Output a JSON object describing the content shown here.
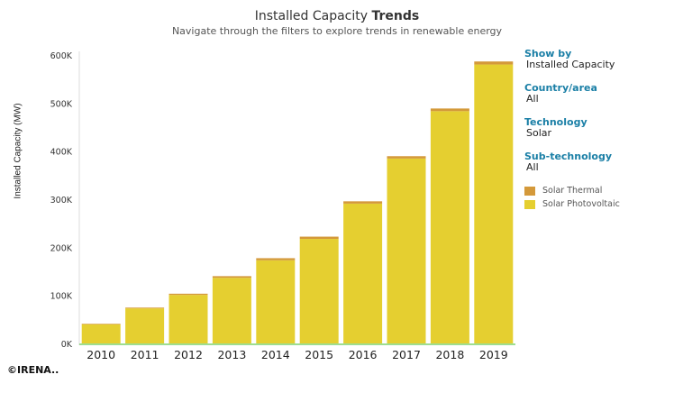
{
  "header": {
    "title_prefix": "Installed Capacity",
    "title_bold": "Trends",
    "subtitle": "Navigate through the filters to explore trends in renewable energy"
  },
  "filters": [
    {
      "label": "Show by",
      "value": "Installed Capacity"
    },
    {
      "label": "Country/area",
      "value": "All"
    },
    {
      "label": "Technology",
      "value": "Solar"
    },
    {
      "label": "Sub-technology",
      "value": "All"
    }
  ],
  "copyright": "©IRENA..",
  "colors": {
    "thermal": "#d4993a",
    "pv": "#e5cf30",
    "baseline": "#7ed36a",
    "filter_label": "#1a7fa6"
  },
  "chart_data": {
    "type": "bar",
    "stacked": true,
    "title": "Installed Capacity Trends",
    "ylabel": "Installed Capacity (MW)",
    "categories": [
      "2010",
      "2011",
      "2012",
      "2013",
      "2014",
      "2015",
      "2016",
      "2017",
      "2018",
      "2019"
    ],
    "series": [
      {
        "name": "Solar Photovoltaic",
        "color": "#e5cf30",
        "values": [
          39600,
          72900,
          100900,
          136500,
          172900,
          217400,
          290800,
          384600,
          483100,
          580200
        ]
      },
      {
        "name": "Solar Thermal",
        "color": "#d4993a",
        "values": [
          1300,
          1600,
          2500,
          3400,
          4400,
          4700,
          4800,
          4900,
          5600,
          6300
        ]
      }
    ],
    "legend_order": [
      "Solar Thermal",
      "Solar Photovoltaic"
    ],
    "yticks": [
      "0K",
      "100K",
      "200K",
      "300K",
      "400K",
      "500K",
      "600K"
    ],
    "ylim": [
      0,
      600000
    ],
    "grid": false,
    "legend": "right"
  }
}
